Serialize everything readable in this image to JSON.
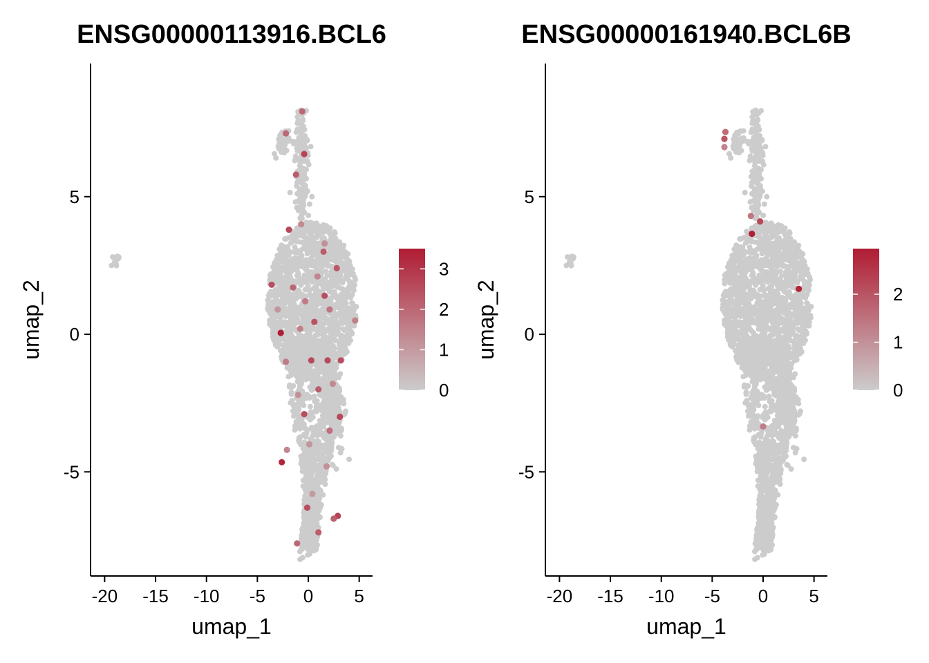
{
  "chart_data": [
    {
      "type": "scatter",
      "title": "ENSG00000113916.BCL6",
      "xlabel": "umap_1",
      "ylabel": "umap_2",
      "xlim": [
        -21,
        6.5
      ],
      "ylim": [
        -8.8,
        9.8
      ],
      "x_ticks": [
        -20,
        -15,
        -10,
        -5,
        0,
        5
      ],
      "x_tick_labels": [
        "-20",
        "-15",
        "-10",
        "-5",
        "0",
        "5"
      ],
      "y_ticks": [
        -5,
        0,
        5
      ],
      "y_tick_labels": [
        "-5",
        "0",
        "5"
      ],
      "legend": {
        "position": "right",
        "min": 0,
        "max": 3.5,
        "ticks": [
          0,
          1,
          2,
          3
        ],
        "tick_labels": [
          "0",
          "1",
          "2",
          "3"
        ],
        "color_low": "#cccccc",
        "color_high": "#b01c33"
      },
      "highlight_points": [
        {
          "x": -2.7,
          "y": 0.05,
          "v": 3.5
        },
        {
          "x": -2.6,
          "y": -4.65,
          "v": 3.3
        },
        {
          "x": -3.6,
          "y": 1.8,
          "v": 2.5
        },
        {
          "x": 0.3,
          "y": -0.95,
          "v": 2.6
        },
        {
          "x": 1.9,
          "y": -0.95,
          "v": 2.6
        },
        {
          "x": 3.2,
          "y": -0.95,
          "v": 2.5
        },
        {
          "x": 0.6,
          "y": 0.45,
          "v": 2.4
        },
        {
          "x": 1.6,
          "y": 1.4,
          "v": 2.5
        },
        {
          "x": 2.8,
          "y": 2.4,
          "v": 2.3
        },
        {
          "x": -1.9,
          "y": 3.8,
          "v": 2.6
        },
        {
          "x": 1.5,
          "y": 3.0,
          "v": 2.2
        },
        {
          "x": -0.4,
          "y": 6.55,
          "v": 2.7
        },
        {
          "x": -1.2,
          "y": 5.8,
          "v": 2.2
        },
        {
          "x": -2.2,
          "y": 7.3,
          "v": 2.0
        },
        {
          "x": -0.6,
          "y": 8.1,
          "v": 2.0
        },
        {
          "x": -0.4,
          "y": -2.9,
          "v": 2.5
        },
        {
          "x": 3.1,
          "y": -3.0,
          "v": 2.6
        },
        {
          "x": 1.0,
          "y": -2.0,
          "v": 2.2
        },
        {
          "x": 2.9,
          "y": -6.6,
          "v": 2.7
        },
        {
          "x": 2.5,
          "y": -6.7,
          "v": 2.1
        },
        {
          "x": -0.1,
          "y": -6.3,
          "v": 2.5
        },
        {
          "x": 1.0,
          "y": -7.2,
          "v": 2.2
        },
        {
          "x": -1.1,
          "y": -7.6,
          "v": 2.0
        },
        {
          "x": 2.1,
          "y": -3.5,
          "v": 1.8
        },
        {
          "x": -1.5,
          "y": 1.7,
          "v": 2.0
        },
        {
          "x": -0.3,
          "y": 1.2,
          "v": 1.6
        },
        {
          "x": 0.9,
          "y": 2.1,
          "v": 1.4
        },
        {
          "x": -2.2,
          "y": -1.0,
          "v": 1.6
        },
        {
          "x": -1.0,
          "y": -2.2,
          "v": 1.2
        },
        {
          "x": 2.4,
          "y": -1.8,
          "v": 1.3
        },
        {
          "x": 4.6,
          "y": 0.5,
          "v": 1.5
        },
        {
          "x": -3.0,
          "y": 0.9,
          "v": 1.1
        },
        {
          "x": -0.7,
          "y": 4.0,
          "v": 1.3
        },
        {
          "x": 1.6,
          "y": 3.3,
          "v": 1.2
        },
        {
          "x": 0.1,
          "y": -4.0,
          "v": 1.1
        },
        {
          "x": -2.1,
          "y": -4.2,
          "v": 1.4
        },
        {
          "x": 0.4,
          "y": -5.8,
          "v": 1.0
        },
        {
          "x": 1.8,
          "y": -4.8,
          "v": 1.2
        },
        {
          "x": -0.8,
          "y": 0.2,
          "v": 1.5
        },
        {
          "x": 2.1,
          "y": 0.9,
          "v": 1.7
        }
      ]
    },
    {
      "type": "scatter",
      "title": "ENSG00000161940.BCL6B",
      "xlabel": "umap_1",
      "ylabel": "umap_2",
      "xlim": [
        -21,
        6.5
      ],
      "ylim": [
        -8.8,
        9.8
      ],
      "x_ticks": [
        -20,
        -15,
        -10,
        -5,
        0,
        5
      ],
      "x_tick_labels": [
        "-20",
        "-15",
        "-10",
        "-5",
        "0",
        "5"
      ],
      "y_ticks": [
        -5,
        0,
        5
      ],
      "y_tick_labels": [
        "-5",
        "0",
        "5"
      ],
      "legend": {
        "position": "right",
        "min": 0,
        "max": 2.95,
        "ticks": [
          0,
          1,
          2
        ],
        "tick_labels": [
          "0",
          "1",
          "2"
        ],
        "color_low": "#cccccc",
        "color_high": "#b01c33"
      },
      "highlight_points": [
        {
          "x": -1.1,
          "y": 3.65,
          "v": 2.9
        },
        {
          "x": 3.5,
          "y": 1.65,
          "v": 2.8
        },
        {
          "x": -0.3,
          "y": 4.1,
          "v": 2.2
        },
        {
          "x": -3.8,
          "y": 7.1,
          "v": 2.0
        },
        {
          "x": -3.7,
          "y": 7.35,
          "v": 1.6
        },
        {
          "x": -3.8,
          "y": 6.8,
          "v": 1.2
        },
        {
          "x": -1.2,
          "y": 4.3,
          "v": 1.4
        },
        {
          "x": 0.0,
          "y": -3.35,
          "v": 1.3
        }
      ]
    }
  ]
}
